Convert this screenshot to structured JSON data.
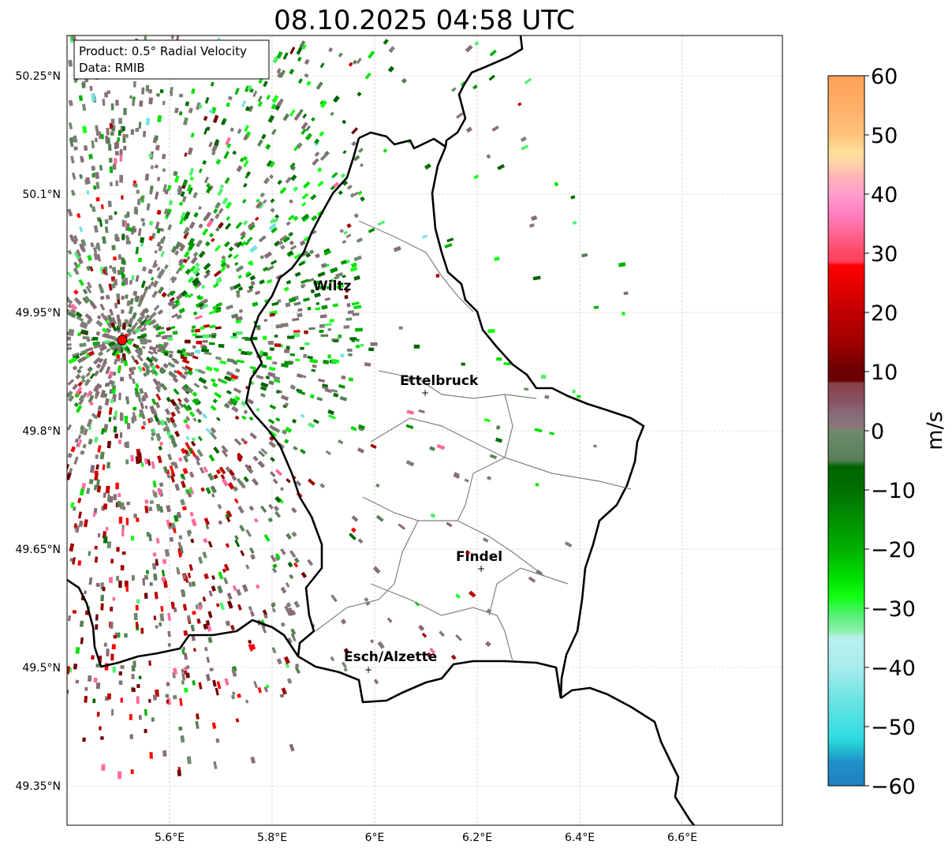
{
  "title": "08.10.2025 04:58 UTC",
  "info_box": {
    "line1": "Product: 0.5° Radial Velocity",
    "line2": "Data: RMIB"
  },
  "lat_ticks": [
    "50.25°N",
    "50.1°N",
    "49.95°N",
    "49.8°N",
    "49.65°N",
    "49.5°N",
    "49.35°N"
  ],
  "lon_ticks": [
    "5.6°E",
    "5.8°E",
    "6°E",
    "6.2°E",
    "6.4°E",
    "6.6°E"
  ],
  "cities": [
    {
      "name": "Wiltz"
    },
    {
      "name": "Ettelbruck"
    },
    {
      "name": "Findel"
    },
    {
      "name": "Esch/Alzette"
    }
  ],
  "colorbar": {
    "label": "m/s",
    "min": -60,
    "max": 60,
    "ticks": [
      "60",
      "50",
      "40",
      "30",
      "20",
      "10",
      "0",
      "−10",
      "−20",
      "−30",
      "−40",
      "−50",
      "−60"
    ],
    "stops": [
      [
        60,
        "#ffa057"
      ],
      [
        54,
        "#ffb26a"
      ],
      [
        50,
        "#ffc47c"
      ],
      [
        47,
        "#ffe09a"
      ],
      [
        45,
        "#ffd2a8"
      ],
      [
        43,
        "#ffb4b8"
      ],
      [
        40,
        "#ff9ecc"
      ],
      [
        37,
        "#ff82c4"
      ],
      [
        34,
        "#ff6a9c"
      ],
      [
        31,
        "#ff5070"
      ],
      [
        28.5,
        "#ff3c58"
      ],
      [
        28,
        "#ff0000"
      ],
      [
        24,
        "#e00000"
      ],
      [
        20,
        "#c00000"
      ],
      [
        15,
        "#a00000"
      ],
      [
        10.5,
        "#700000"
      ],
      [
        8.5,
        "#680000"
      ],
      [
        8,
        "#884048"
      ],
      [
        5,
        "#885462"
      ],
      [
        3,
        "#886a78"
      ],
      [
        0.5,
        "#887878"
      ],
      [
        0,
        "#6e8a6e"
      ],
      [
        -5,
        "#588058"
      ],
      [
        -6,
        "#006400"
      ],
      [
        -10,
        "#007000"
      ],
      [
        -15,
        "#009000"
      ],
      [
        -20,
        "#00b000"
      ],
      [
        -25,
        "#00e000"
      ],
      [
        -28,
        "#10ff10"
      ],
      [
        -31,
        "#50f070"
      ],
      [
        -34,
        "#90f0b0"
      ],
      [
        -35,
        "#b8f0f0"
      ],
      [
        -40,
        "#a8ecec"
      ],
      [
        -45,
        "#70e4e4"
      ],
      [
        -52,
        "#30dce0"
      ],
      [
        -54,
        "#20b8d0"
      ],
      [
        -56,
        "#2090c8"
      ],
      [
        -60,
        "#2080c0"
      ]
    ]
  },
  "radar_site": {
    "color": "#ff0000"
  }
}
